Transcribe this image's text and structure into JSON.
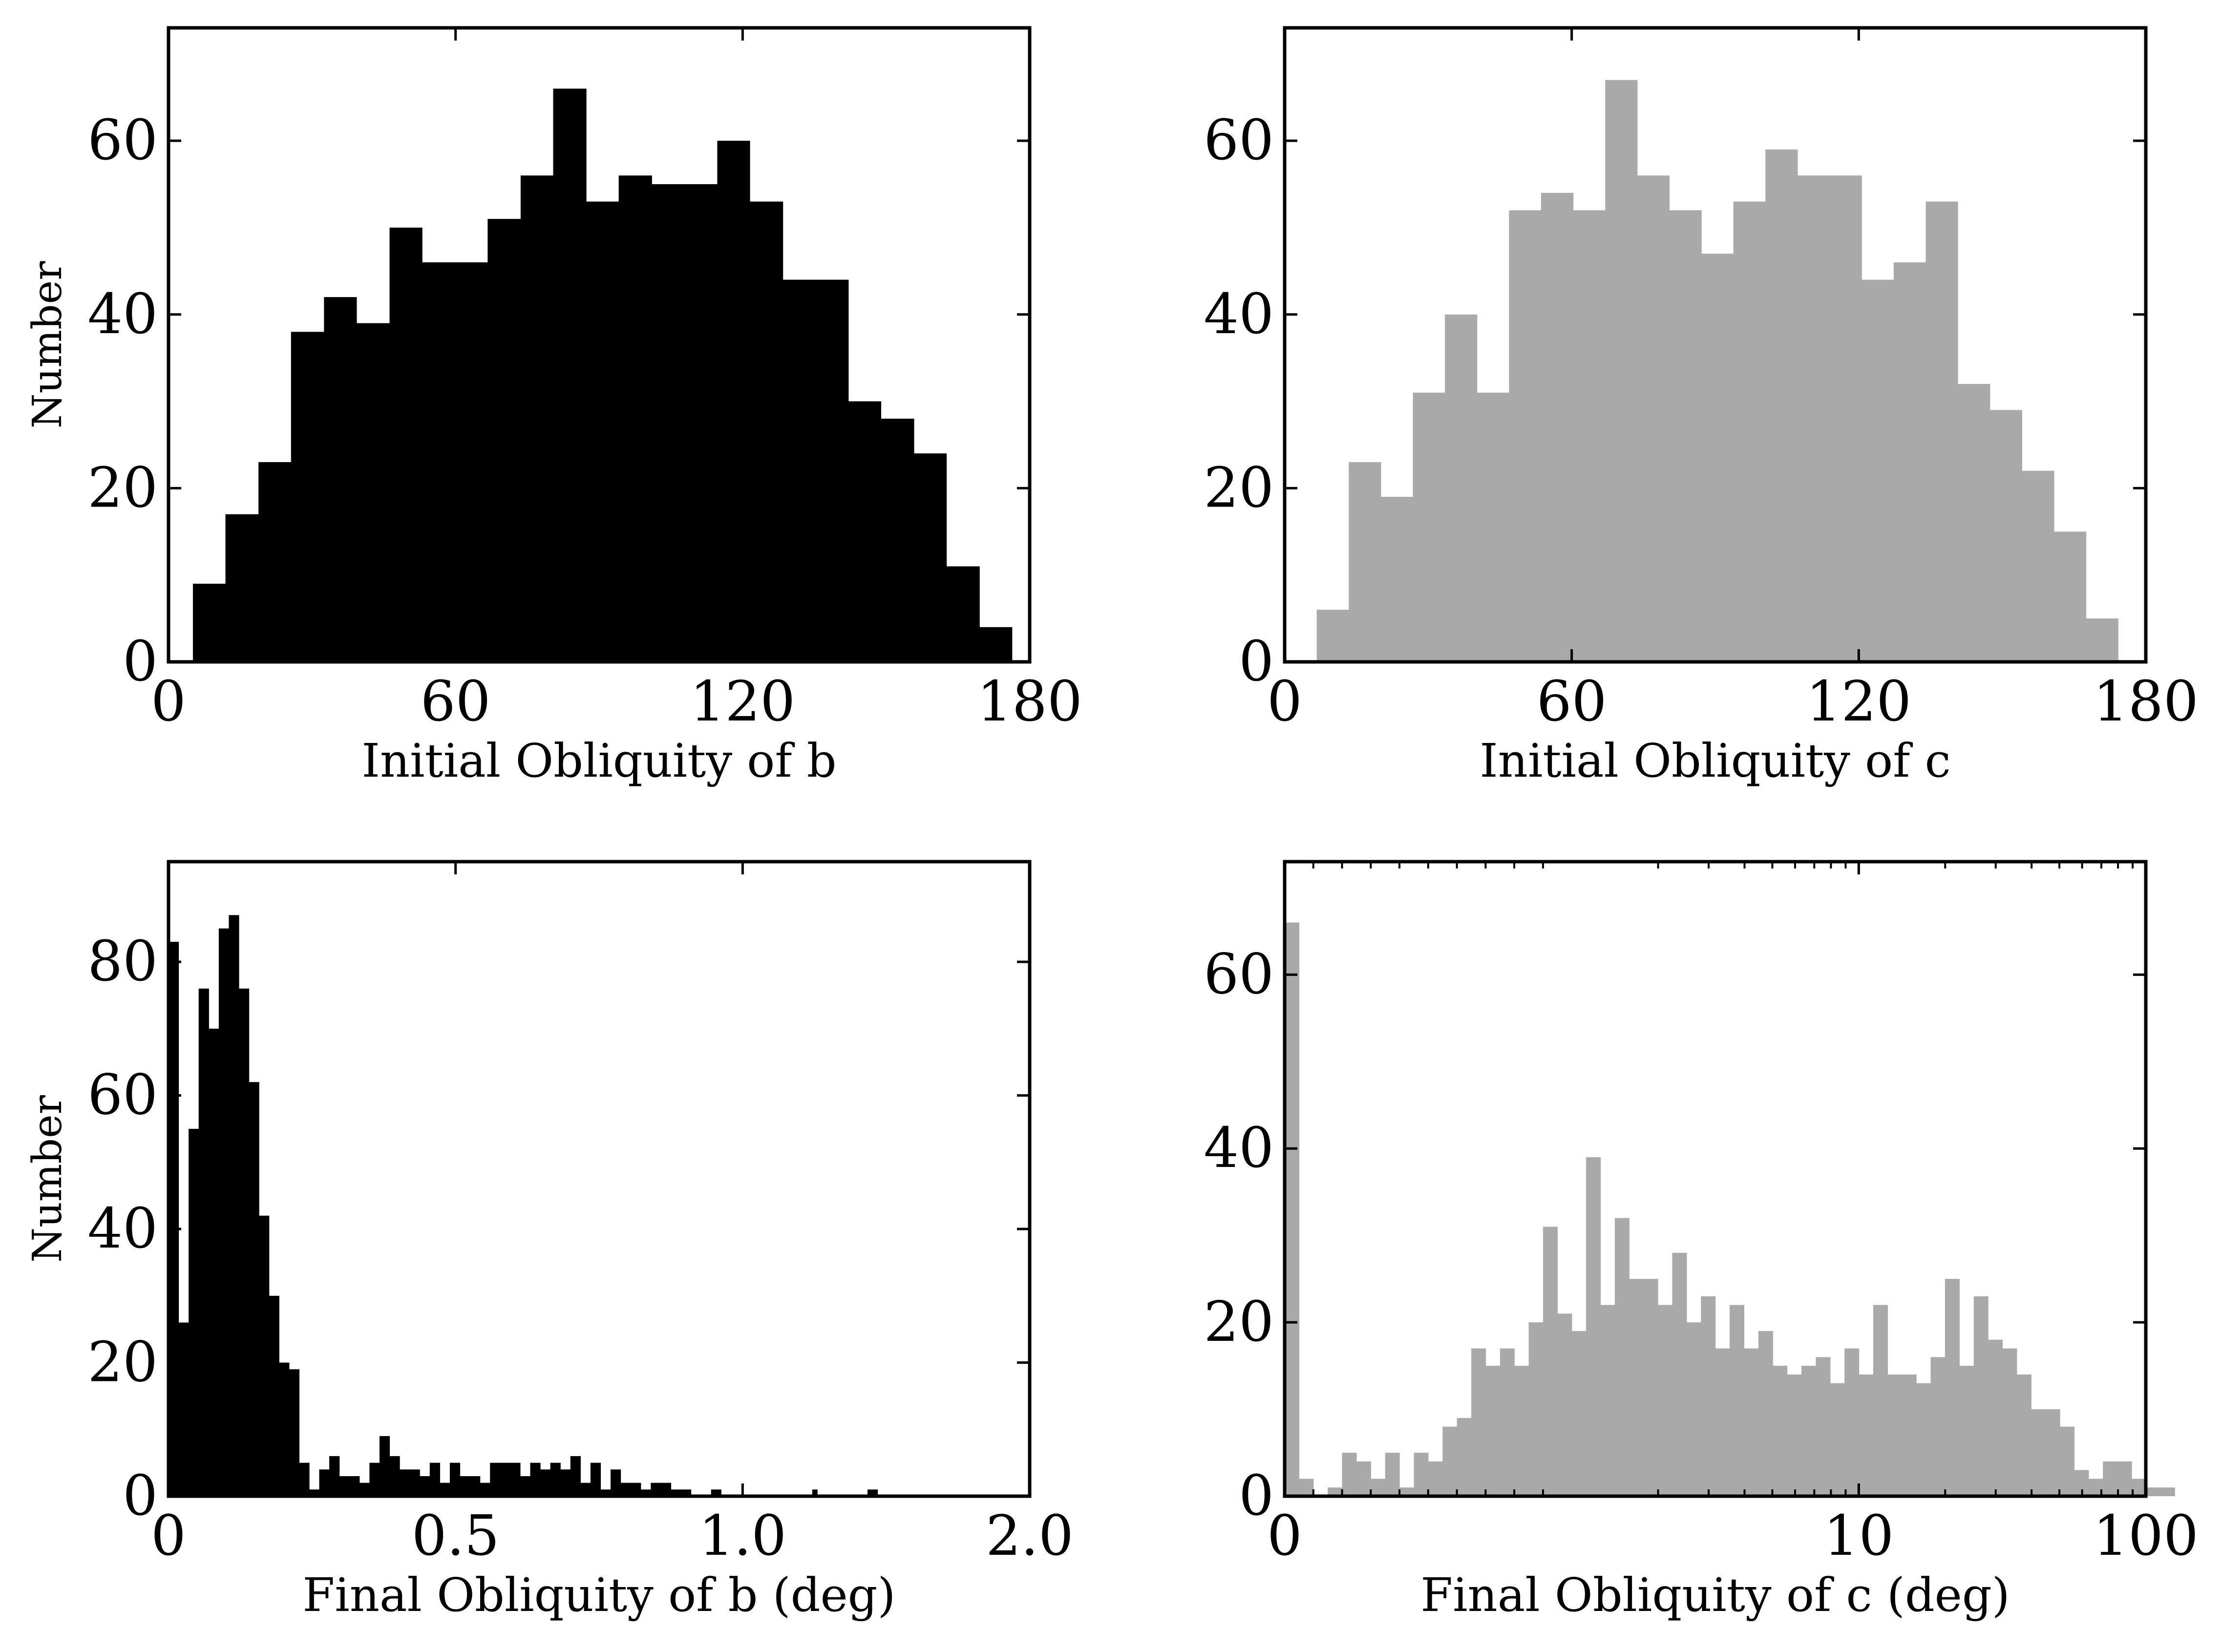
{
  "colors": {
    "panel_b": "#000000",
    "panel_c": "#a9a9a9",
    "frame": "#000000",
    "background": "#ffffff"
  },
  "chart_data": [
    {
      "type": "bar",
      "xlabel": "Initial Obliquity of b",
      "ylabel": "Number",
      "xlim": [
        0,
        180
      ],
      "ylim": [
        0,
        73
      ],
      "xticks": [
        0,
        60,
        120,
        180
      ],
      "xtick_labels": [
        "0",
        "60",
        "120",
        "180"
      ],
      "yticks": [
        0,
        20,
        40,
        60
      ],
      "ytick_labels": [
        "0",
        "20",
        "40",
        "60"
      ],
      "x_scale": "linear",
      "grid": false,
      "bin_edges": [
        5.1,
        11.9,
        18.8,
        25.6,
        32.5,
        39.3,
        46.2,
        53.0,
        59.9,
        66.7,
        73.6,
        80.4,
        87.3,
        94.1,
        101.0,
        107.8,
        114.7,
        121.5,
        128.4,
        135.2,
        142.1,
        148.9,
        155.8,
        162.6,
        169.5,
        176.3
      ],
      "values": [
        9,
        17,
        23,
        38,
        42,
        39,
        50,
        46,
        46,
        51,
        56,
        66,
        53,
        56,
        55,
        55,
        60,
        53,
        44,
        44,
        30,
        28,
        24,
        11,
        4
      ]
    },
    {
      "type": "bar",
      "xlabel": "Initial Obliquity of c",
      "ylabel": "",
      "xlim": [
        0,
        180
      ],
      "ylim": [
        0,
        73
      ],
      "xticks": [
        0,
        60,
        120,
        180
      ],
      "xtick_labels": [
        "0",
        "60",
        "120",
        "180"
      ],
      "yticks": [
        0,
        20,
        40,
        60
      ],
      "ytick_labels": [
        "0",
        "20",
        "40",
        "60"
      ],
      "x_scale": "linear",
      "grid": false,
      "bin_edges": [
        6.7,
        13.4,
        20.1,
        26.8,
        33.5,
        40.2,
        46.9,
        53.6,
        60.3,
        67.0,
        73.7,
        80.4,
        87.1,
        93.8,
        100.5,
        107.2,
        113.9,
        120.6,
        127.3,
        134.0,
        140.7,
        147.4,
        154.1,
        160.8,
        167.5,
        174.2
      ],
      "values": [
        6,
        23,
        19,
        31,
        40,
        31,
        52,
        54,
        52,
        67,
        56,
        52,
        47,
        53,
        59,
        56,
        56,
        44,
        46,
        53,
        32,
        29,
        22,
        15,
        5
      ]
    },
    {
      "type": "bar",
      "xlabel": "Final Obliquity of b (deg)",
      "ylabel": "Number",
      "xlim": [
        0,
        2.0
      ],
      "ylim": [
        0,
        95
      ],
      "xticks": [
        0,
        0.5,
        1.0,
        2.0
      ],
      "xtick_labels": [
        "0",
        "0.5",
        "1.0",
        "2.0"
      ],
      "yticks": [
        0,
        20,
        40,
        60,
        80
      ],
      "ytick_labels": [
        "0",
        "20",
        "40",
        "60",
        "80"
      ],
      "x_scale": "piecewise-linear",
      "x_scale_knots": [
        0,
        0.5,
        1.0,
        2.0
      ],
      "grid": false,
      "bin_width": 0.0175,
      "values": [
        83,
        26,
        55,
        76,
        70,
        85,
        87,
        76,
        62,
        42,
        30,
        20,
        19,
        5,
        1,
        4,
        6,
        3,
        3,
        2,
        5,
        9,
        6,
        4,
        4,
        3,
        5,
        2,
        5,
        3,
        3,
        2,
        5,
        5,
        5,
        3,
        5,
        4,
        5,
        4,
        6,
        2,
        5,
        1,
        4,
        2,
        2,
        1,
        2,
        2,
        1,
        1,
        0,
        0,
        1,
        0,
        0,
        0,
        0,
        0,
        0,
        0,
        0,
        0,
        0,
        0,
        0,
        0,
        0,
        0,
        0,
        1,
        0,
        0,
        0,
        0,
        0,
        0,
        0,
        0,
        0,
        0,
        1,
        1,
        0,
        0,
        0,
        0,
        0,
        0
      ]
    },
    {
      "type": "bar",
      "xlabel": "Final Obliquity of c (deg)",
      "ylabel": "",
      "xlim": [
        0,
        100
      ],
      "ylim": [
        0,
        73
      ],
      "xticks": [
        0,
        10,
        100
      ],
      "xtick_labels": [
        "0",
        "10",
        "100"
      ],
      "yticks": [
        0,
        20,
        40,
        60
      ],
      "ytick_labels": [
        "0",
        "20",
        "40",
        "60"
      ],
      "x_scale": "symlog",
      "grid": false,
      "bin_width_fraction": 0.01667,
      "values": [
        66,
        2,
        0,
        1,
        5,
        4,
        2,
        5,
        1,
        5,
        4,
        8,
        9,
        17,
        15,
        17,
        15,
        20,
        31,
        21,
        19,
        39,
        22,
        32,
        25,
        25,
        22,
        28,
        20,
        23,
        17,
        22,
        17,
        19,
        15,
        14,
        15,
        16,
        13,
        17,
        14,
        22,
        14,
        14,
        13,
        16,
        25,
        15,
        23,
        18,
        17,
        14,
        10,
        10,
        8,
        3,
        2,
        4,
        4,
        2,
        1,
        1
      ]
    }
  ]
}
